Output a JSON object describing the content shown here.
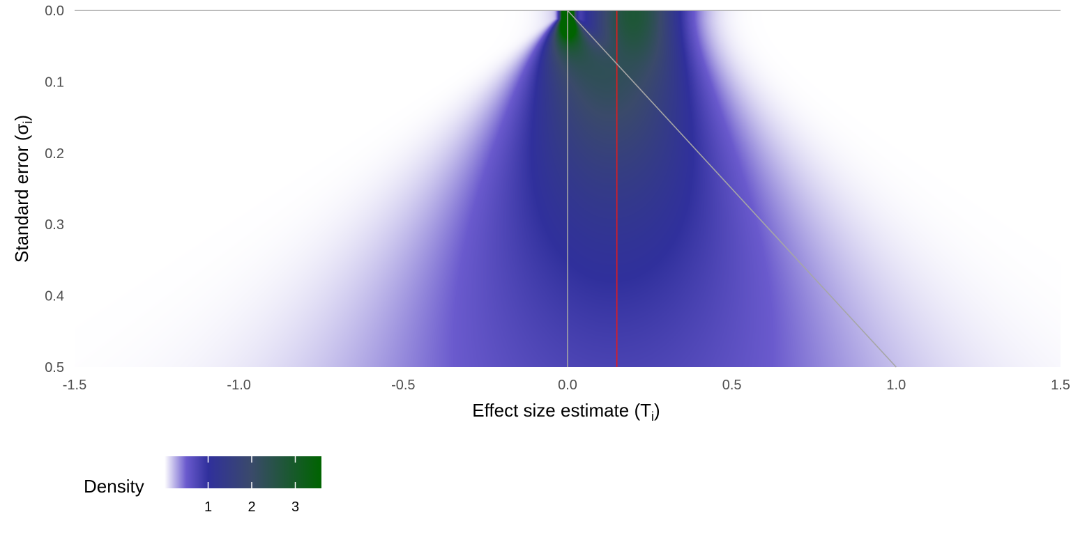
{
  "chart_data": {
    "type": "heatmap",
    "title": "",
    "xlabel": "Effect size estimate (",
    "xlabel_symbol": "T",
    "xlabel_subscript": "i",
    "xlabel_close": ")",
    "ylabel": "Standard error (",
    "ylabel_symbol": "σ",
    "ylabel_subscript": "i",
    "ylabel_close": ")",
    "xlim": [
      -1.5,
      1.5
    ],
    "ylim": [
      0.0,
      0.5
    ],
    "y_reversed": true,
    "x_ticks": [
      -1.5,
      -1.0,
      -0.5,
      0.0,
      0.5,
      1.0,
      1.5
    ],
    "x_tick_labels": [
      "-1.5",
      "-1.0",
      "-0.5",
      "0.0",
      "0.5",
      "1.0",
      "1.5"
    ],
    "y_ticks": [
      0.0,
      0.1,
      0.2,
      0.3,
      0.4,
      0.5
    ],
    "y_tick_labels": [
      "0.0",
      "0.1",
      "0.2",
      "0.3",
      "0.4",
      "0.5"
    ],
    "grid": false,
    "density_model": {
      "mixture": [
        {
          "weight": 0.3,
          "mean": 0.0,
          "sd": 0.0
        },
        {
          "weight": 0.7,
          "mean": 0.2,
          "sd": 0.1
        }
      ],
      "noise_sd": "standard error"
    },
    "reference_lines": [
      {
        "name": "null-effect-line",
        "type": "vertical",
        "x": 0.0,
        "color": "#a6a6a6"
      },
      {
        "name": "mean-effect-line",
        "type": "vertical",
        "x": 0.15,
        "color": "#e41a1c"
      },
      {
        "name": "funnel-boundary-line",
        "type": "segment",
        "x1": 0.0,
        "y1": 0.0,
        "x2": 1.0,
        "y2": 0.5,
        "color": "#a6a6a6"
      },
      {
        "name": "top-axis-line",
        "type": "horizontal",
        "y": 0.0,
        "color": "#a6a6a6"
      }
    ],
    "legend": {
      "title": "Density",
      "placement": "bottom-left",
      "scale_max": 3.6,
      "ticks": [
        1,
        2,
        3
      ],
      "tick_labels": [
        "1",
        "2",
        "3"
      ],
      "colors": [
        {
          "stop": 0.0,
          "color": "#ffffff"
        },
        {
          "stop": 0.5,
          "color": "#6a5acd"
        },
        {
          "stop": 1.0,
          "color": "#30309c"
        },
        {
          "stop": 2.0,
          "color": "#3a4a6a"
        },
        {
          "stop": 3.6,
          "color": "#006400"
        }
      ]
    }
  }
}
